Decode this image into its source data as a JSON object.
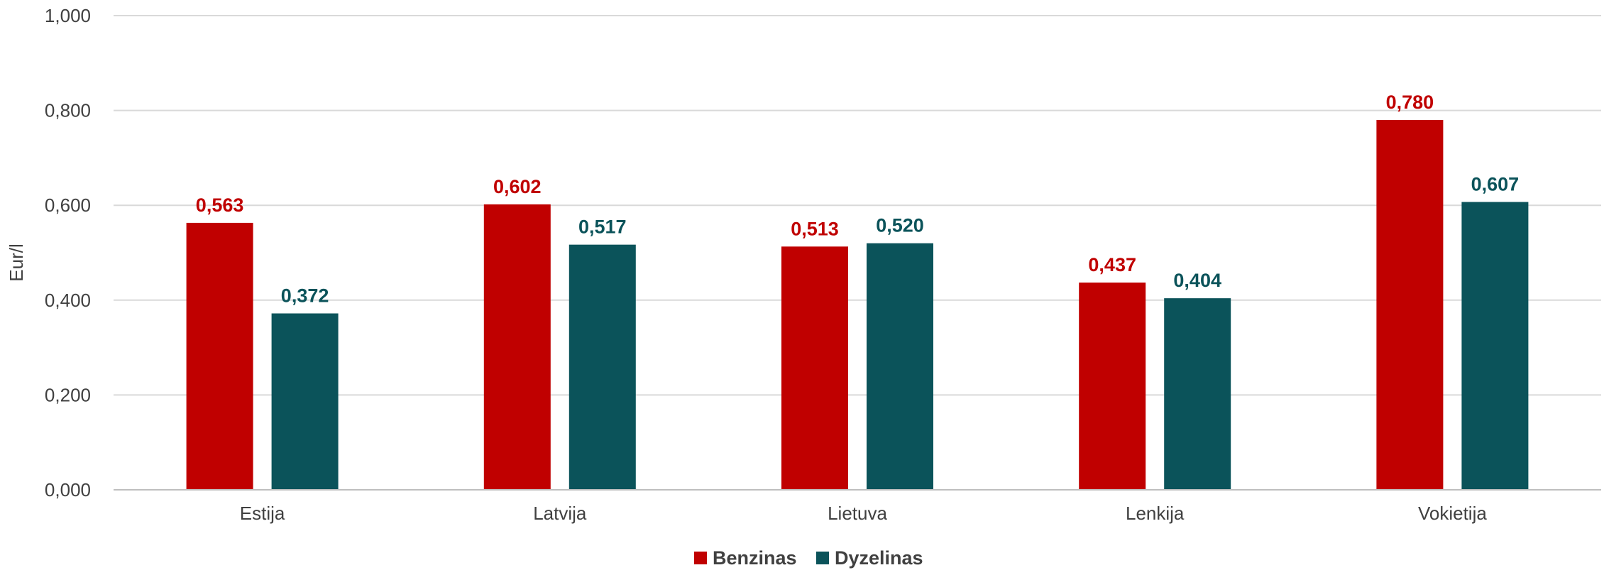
{
  "chart_data": {
    "type": "bar",
    "title": "",
    "xlabel": "",
    "ylabel": "Eur/l",
    "ylim": [
      0,
      1
    ],
    "y_ticks": [
      "0,000",
      "0,200",
      "0,400",
      "0,600",
      "0,800",
      "1,000"
    ],
    "y_tick_values": [
      0,
      0.2,
      0.4,
      0.6,
      0.8,
      1.0
    ],
    "categories": [
      "Estija",
      "Latvija",
      "Lietuva",
      "Lenkija",
      "Vokietija"
    ],
    "series": [
      {
        "name": "Benzinas",
        "color": "#C00000",
        "values": [
          0.563,
          0.602,
          0.513,
          0.437,
          0.78
        ],
        "labels": [
          "0,563",
          "0,602",
          "0,513",
          "0,437",
          "0,780"
        ]
      },
      {
        "name": "Dyzelinas",
        "color": "#0B535A",
        "values": [
          0.372,
          0.517,
          0.52,
          0.404,
          0.607
        ],
        "labels": [
          "0,372",
          "0,517",
          "0,520",
          "0,404",
          "0,607"
        ]
      }
    ],
    "grid": true,
    "legend_position": "bottom-center"
  }
}
